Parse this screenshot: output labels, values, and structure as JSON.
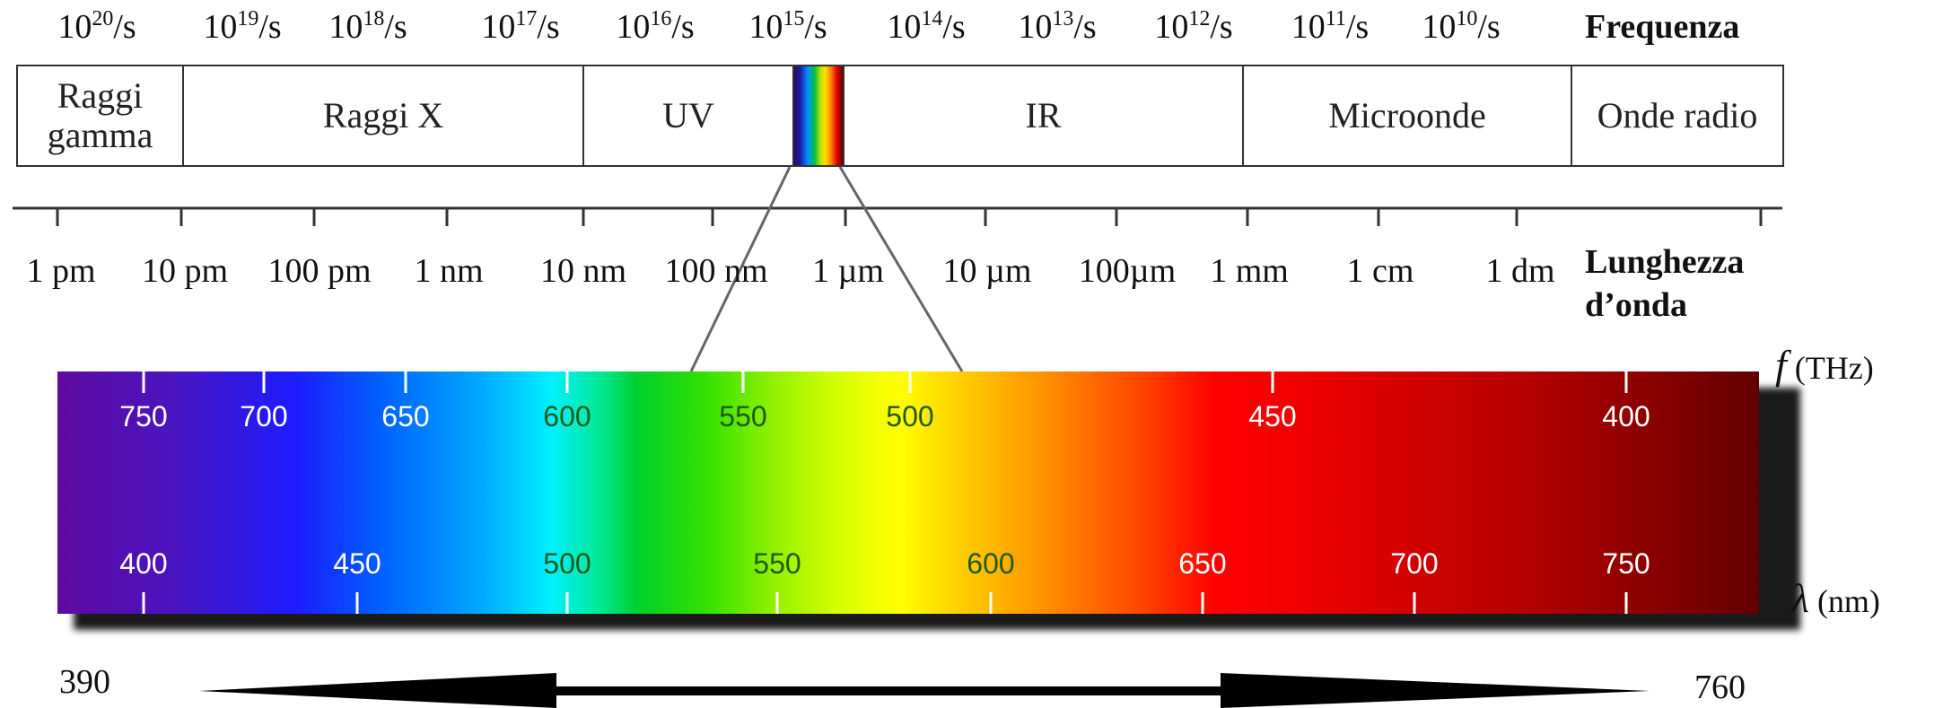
{
  "frequency": {
    "header": "Frequenza",
    "labels": [
      {
        "base": "10",
        "exp": "20",
        "unit": "/s"
      },
      {
        "base": "10",
        "exp": "19",
        "unit": "/s"
      },
      {
        "base": "10",
        "exp": "18",
        "unit": "/s"
      },
      {
        "base": "10",
        "exp": "17",
        "unit": "/s"
      },
      {
        "base": "10",
        "exp": "16",
        "unit": "/s"
      },
      {
        "base": "10",
        "exp": "15",
        "unit": "/s"
      },
      {
        "base": "10",
        "exp": "14",
        "unit": "/s"
      },
      {
        "base": "10",
        "exp": "13",
        "unit": "/s"
      },
      {
        "base": "10",
        "exp": "12",
        "unit": "/s"
      },
      {
        "base": "10",
        "exp": "11",
        "unit": "/s"
      },
      {
        "base": "10",
        "exp": "10",
        "unit": "/s"
      }
    ]
  },
  "bands": [
    "Raggi gamma",
    "Raggi X",
    "UV",
    "IR",
    "Microonde",
    "Onde radio"
  ],
  "wavelength": {
    "header_line1": "Lunghezza",
    "header_line2": "d’onda",
    "labels": [
      "1 pm",
      "10 pm",
      "100 pm",
      "1 nm",
      "10 nm",
      "100 nm",
      "1 µm",
      "10 µm",
      "100µm",
      "1 mm",
      "1 cm",
      "1 dm"
    ]
  },
  "visible_spectrum": {
    "freq_axis_symbol": "f",
    "freq_axis_unit": "(THz)",
    "wavelength_axis_symbol": "λ",
    "wavelength_axis_unit": "(nm)",
    "frequency_ticks_thz": [
      "750",
      "700",
      "650",
      "600",
      "550",
      "500",
      "450",
      "400"
    ],
    "wavelength_ticks_nm": [
      "400",
      "450",
      "500",
      "550",
      "600",
      "650",
      "700",
      "750"
    ],
    "range_start": "390",
    "range_end": "760"
  }
}
